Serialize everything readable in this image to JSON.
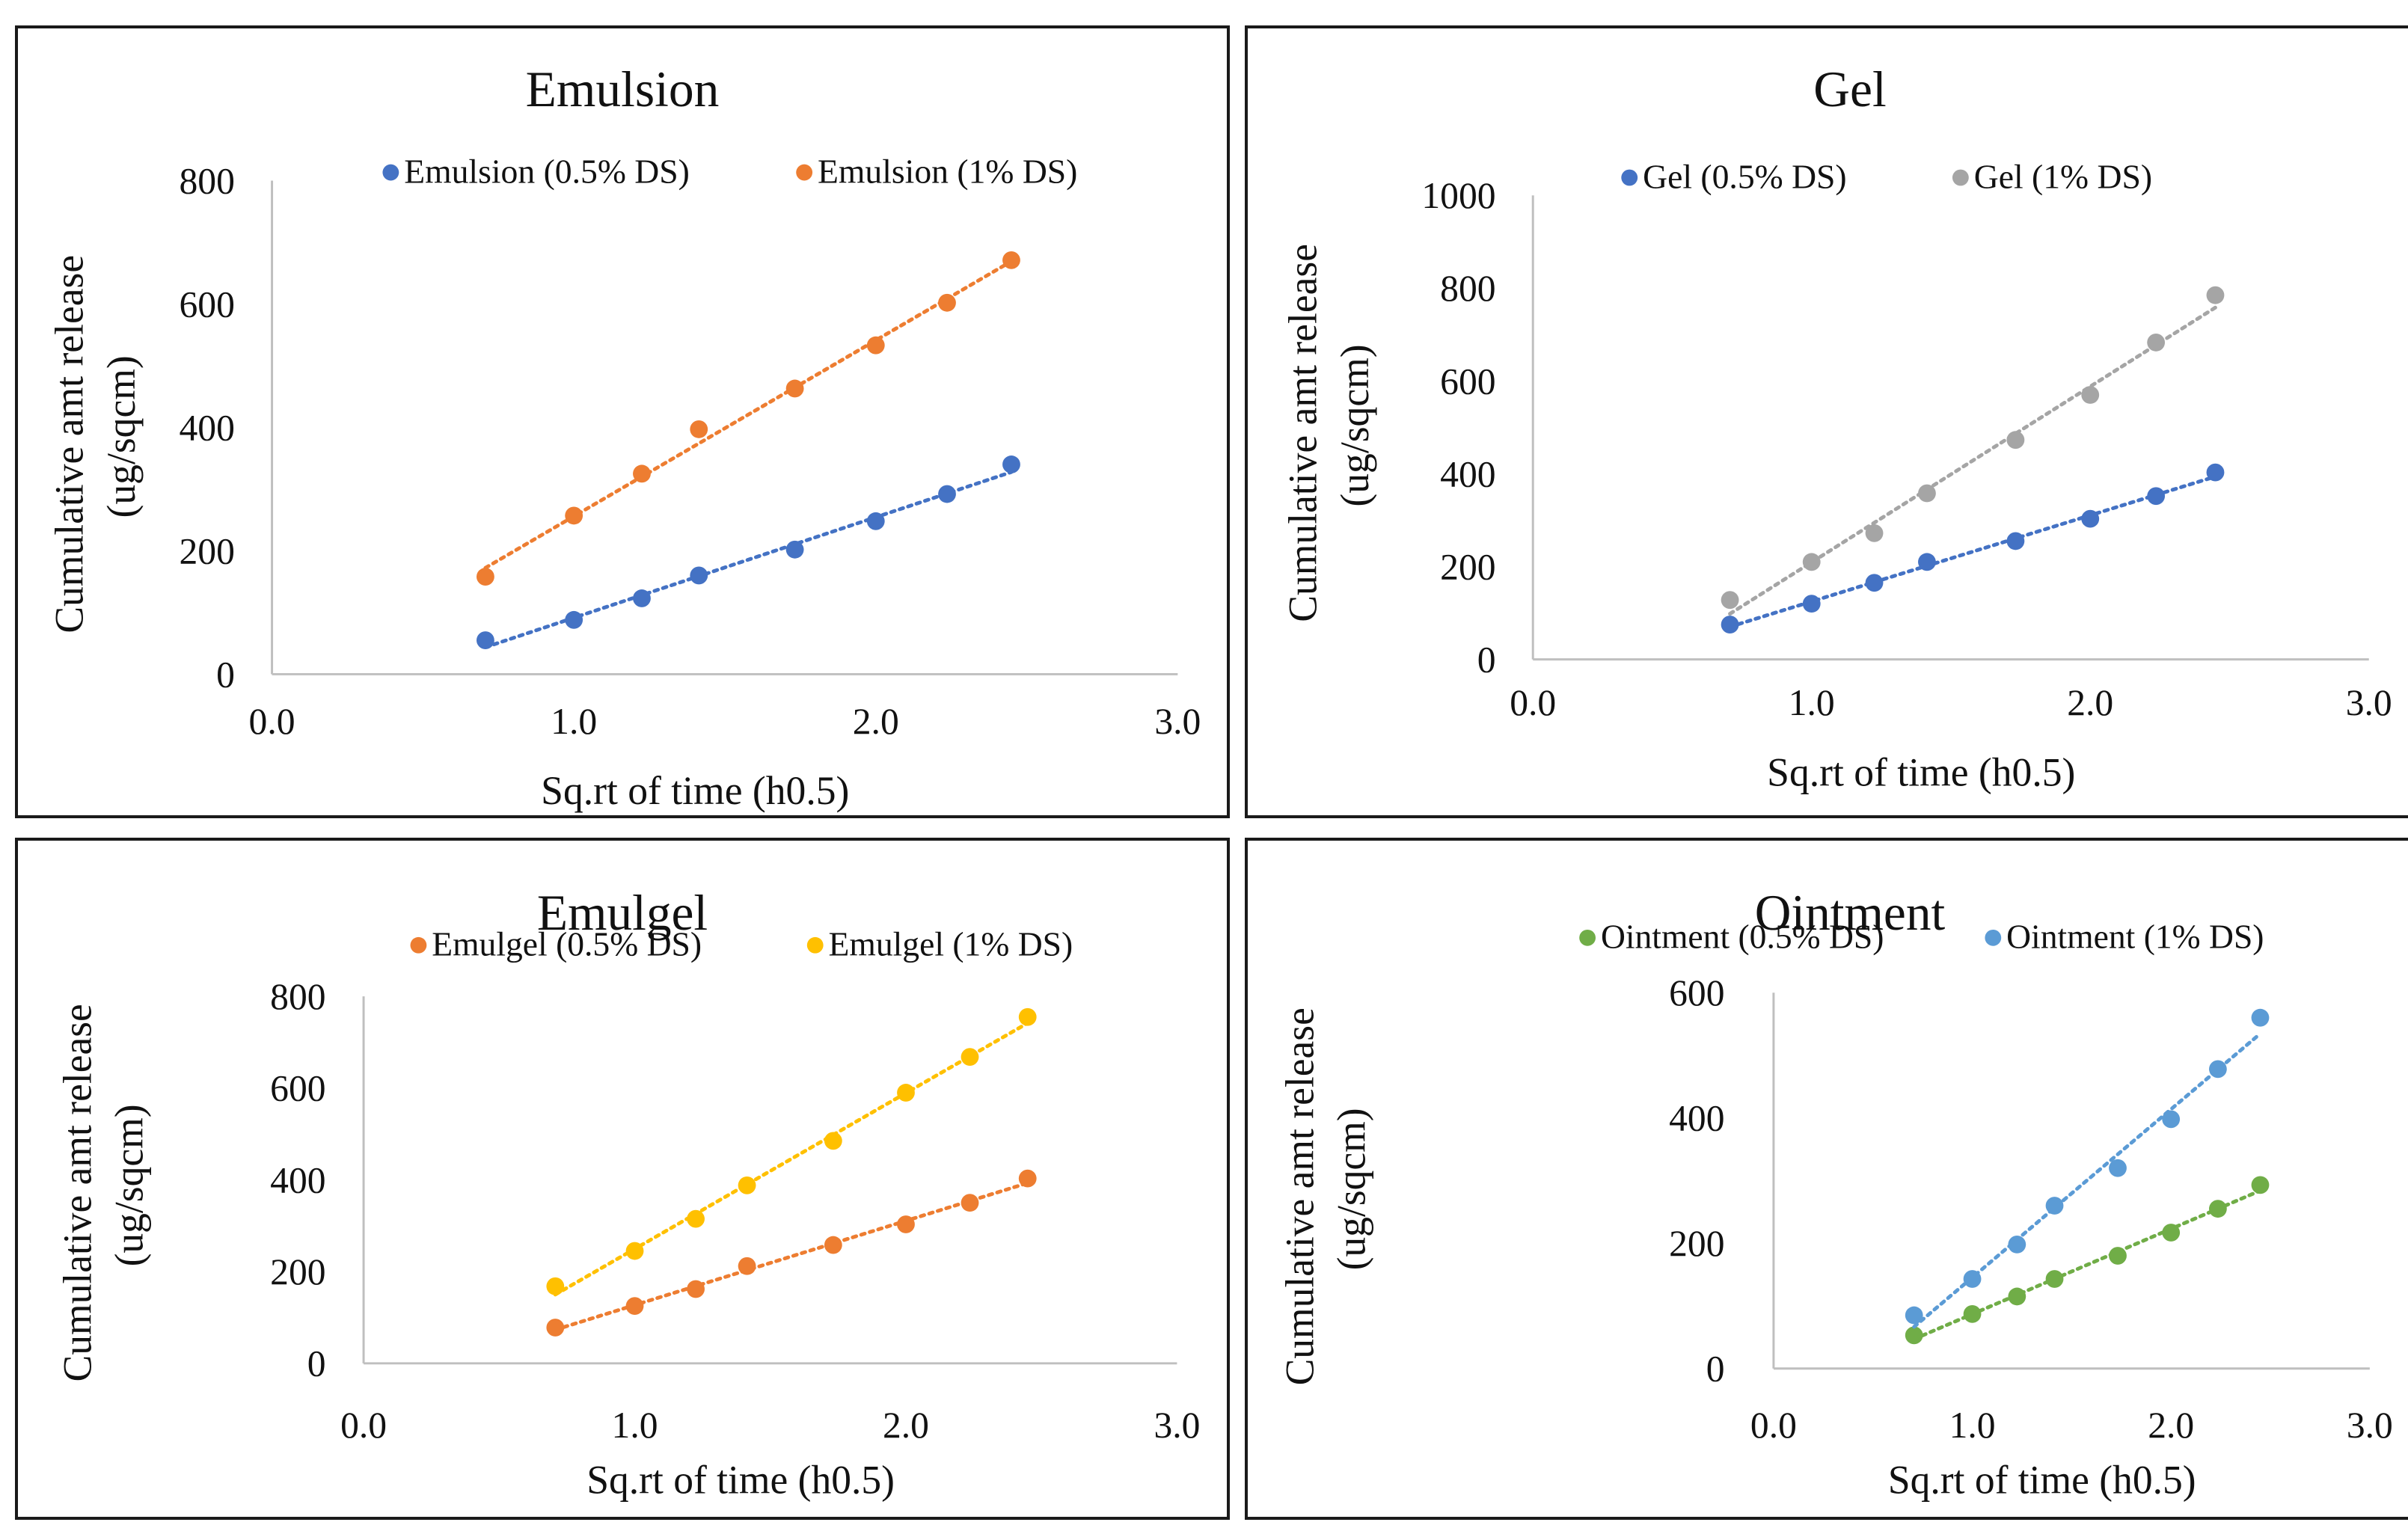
{
  "chart_data": [
    {
      "type": "scatter",
      "title": "Emulsion",
      "xlabel": "Sq.rt of time (h0.5)",
      "ylabel": [
        "Cumulative  amt release",
        "(ug/sqcm)"
      ],
      "xlim": [
        0,
        3
      ],
      "ylim": [
        0,
        800
      ],
      "xticks": [
        "0.0",
        "1.0",
        "2.0",
        "3.0"
      ],
      "yticks": [
        "0",
        "200",
        "400",
        "600",
        "800"
      ],
      "legend_position": "top",
      "trendline": "linear dotted",
      "x": [
        0.707,
        1.0,
        1.225,
        1.414,
        1.732,
        2.0,
        2.236,
        2.449
      ],
      "series": [
        {
          "name": "Emulsion (0.5% DS)",
          "color": "#4472c4",
          "values": [
            55,
            88,
            123,
            160,
            202,
            248,
            292,
            340
          ]
        },
        {
          "name": "Emulsion (1% DS)",
          "color": "#ed7d31",
          "values": [
            158,
            257,
            325,
            397,
            463,
            533,
            602,
            671
          ]
        }
      ]
    },
    {
      "type": "scatter",
      "title": "Gel",
      "xlabel": "Sq.rt of time (h0.5)",
      "ylabel": [
        "Cumulative  amt release",
        "(ug/sqcm)"
      ],
      "xlim": [
        0,
        3
      ],
      "ylim": [
        0,
        1000
      ],
      "xticks": [
        "0.0",
        "1.0",
        "2.0",
        "3.0"
      ],
      "yticks": [
        "0",
        "200",
        "400",
        "600",
        "800",
        "1000"
      ],
      "legend_position": "top",
      "trendline": "linear dotted",
      "x": [
        0.707,
        1.0,
        1.225,
        1.414,
        1.732,
        2.0,
        2.236,
        2.449
      ],
      "series": [
        {
          "name": "Gel (0.5% DS)",
          "color": "#4472c4",
          "values": [
            75,
            120,
            165,
            210,
            255,
            303,
            352,
            403
          ]
        },
        {
          "name": "Gel (1% DS)",
          "color": "#a5a5a5",
          "values": [
            128,
            210,
            272,
            358,
            473,
            570,
            683,
            785
          ]
        }
      ]
    },
    {
      "type": "scatter",
      "title": "Emulgel",
      "xlabel": "Sq.rt of time (h0.5)",
      "ylabel": [
        "Cumulative  amt release",
        "(ug/sqcm)"
      ],
      "xlim": [
        0,
        3
      ],
      "ylim": [
        0,
        800
      ],
      "xticks": [
        "0.0",
        "1.0",
        "2.0",
        "3.0"
      ],
      "yticks": [
        "0",
        "200",
        "400",
        "600",
        "800"
      ],
      "legend_position": "top",
      "trendline": "linear dotted",
      "x": [
        0.707,
        1.0,
        1.225,
        1.414,
        1.732,
        2.0,
        2.236,
        2.449
      ],
      "series": [
        {
          "name": "Emulgel (0.5% DS)",
          "color": "#ed7d31",
          "values": [
            78,
            125,
            162,
            212,
            258,
            303,
            350,
            403
          ]
        },
        {
          "name": "Emulgel (1% DS)",
          "color": "#ffc000",
          "values": [
            168,
            245,
            315,
            388,
            485,
            590,
            668,
            755
          ]
        }
      ]
    },
    {
      "type": "scatter",
      "title": "Ointment",
      "xlabel": "Sq.rt of time (h0.5)",
      "ylabel": [
        "Cumulative  amt release",
        "(ug/sqcm)"
      ],
      "xlim": [
        0,
        3
      ],
      "ylim": [
        0,
        600
      ],
      "xticks": [
        "0.0",
        "1.0",
        "2.0",
        "3.0"
      ],
      "yticks": [
        "0",
        "200",
        "400",
        "600"
      ],
      "legend_position": "top",
      "trendline": "linear dotted",
      "x": [
        0.707,
        1.0,
        1.225,
        1.414,
        1.732,
        2.0,
        2.236,
        2.449
      ],
      "series": [
        {
          "name": "Ointment (0.5% DS)",
          "color": "#70ad47",
          "values": [
            53,
            87,
            115,
            143,
            180,
            217,
            255,
            293
          ]
        },
        {
          "name": "Ointment (1% DS)",
          "color": "#5b9bd5",
          "values": [
            85,
            143,
            198,
            260,
            320,
            398,
            478,
            560
          ]
        }
      ]
    }
  ]
}
